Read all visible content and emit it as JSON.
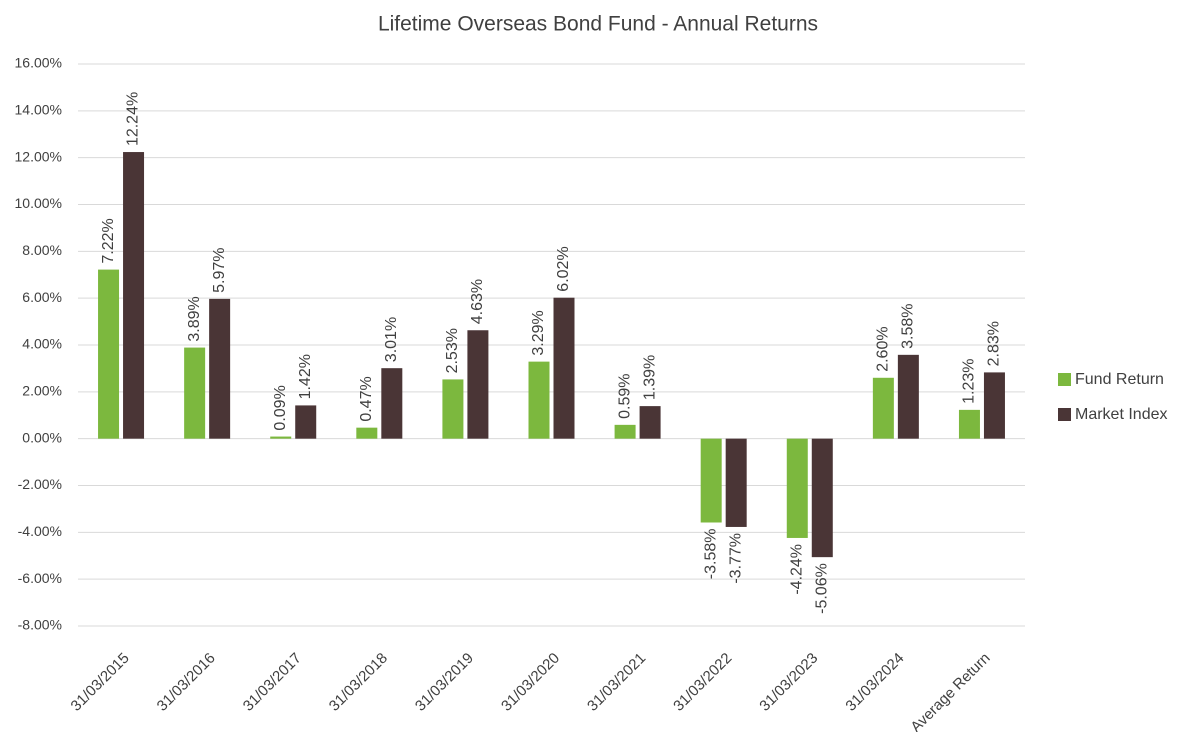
{
  "chart_data": {
    "type": "bar",
    "title": "Lifetime Overseas Bond Fund - Annual Returns",
    "categories": [
      "31/03/2015",
      "31/03/2016",
      "31/03/2017",
      "31/03/2018",
      "31/03/2019",
      "31/03/2020",
      "31/03/2021",
      "31/03/2022",
      "31/03/2023",
      "31/03/2024",
      "Average Return"
    ],
    "series": [
      {
        "name": "Fund Return",
        "color": "#7cb83e",
        "values": [
          7.22,
          3.89,
          0.09,
          0.47,
          2.53,
          3.29,
          0.59,
          -3.58,
          -4.24,
          2.6,
          1.23
        ],
        "value_labels": [
          "7.22%",
          "3.89%",
          "0.09%",
          "0.47%",
          "2.53%",
          "3.29%",
          "0.59%",
          "-3.58%",
          "-4.24%",
          "2.60%",
          "1.23%"
        ]
      },
      {
        "name": "Market Index",
        "color": "#4a3536",
        "values": [
          12.24,
          5.97,
          1.42,
          3.01,
          4.63,
          6.02,
          1.39,
          -3.77,
          -5.06,
          3.58,
          2.83
        ],
        "value_labels": [
          "12.24%",
          "5.97%",
          "1.42%",
          "3.01%",
          "4.63%",
          "6.02%",
          "1.39%",
          "-3.77%",
          "-5.06%",
          "3.58%",
          "2.83%"
        ]
      }
    ],
    "ylim": [
      -8,
      16
    ],
    "yticks": [
      {
        "value": -8,
        "label": "-8.00%"
      },
      {
        "value": -6,
        "label": "-6.00%"
      },
      {
        "value": -4,
        "label": "-4.00%"
      },
      {
        "value": -2,
        "label": "-2.00%"
      },
      {
        "value": 0,
        "label": "0.00%"
      },
      {
        "value": 2,
        "label": "2.00%"
      },
      {
        "value": 4,
        "label": "4.00%"
      },
      {
        "value": 6,
        "label": "6.00%"
      },
      {
        "value": 8,
        "label": "8.00%"
      },
      {
        "value": 10,
        "label": "10.00%"
      },
      {
        "value": 12,
        "label": "12.00%"
      },
      {
        "value": 14,
        "label": "14.00%"
      },
      {
        "value": 16,
        "label": "16.00%"
      }
    ],
    "grid": true,
    "legend": "right"
  }
}
